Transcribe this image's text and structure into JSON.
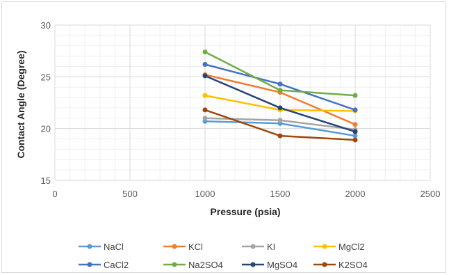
{
  "chart_data": {
    "type": "line",
    "xlabel": "Pressure (psia)",
    "ylabel": "Contact Angle (Degree)",
    "xlim": [
      0,
      2500
    ],
    "ylim": [
      15,
      30
    ],
    "x_ticks": [
      0,
      500,
      1000,
      1500,
      2000,
      2500
    ],
    "y_ticks": [
      15,
      20,
      25,
      30
    ],
    "x": [
      1000,
      1500,
      2000
    ],
    "grid": true,
    "legend_position": "bottom",
    "series": [
      {
        "name": "NaCl",
        "color": "#5b9bd5",
        "values": [
          20.7,
          20.5,
          19.3
        ]
      },
      {
        "name": "KCl",
        "color": "#ed7d31",
        "values": [
          25.2,
          23.5,
          20.4
        ]
      },
      {
        "name": "KI",
        "color": "#a5a5a5",
        "values": [
          21.0,
          20.8,
          19.9
        ]
      },
      {
        "name": "MgCl2",
        "color": "#ffc000",
        "values": [
          23.2,
          21.8,
          21.7
        ]
      },
      {
        "name": "CaCl2",
        "color": "#4472c4",
        "values": [
          26.2,
          24.3,
          21.8
        ]
      },
      {
        "name": "Na2SO4",
        "color": "#70ad47",
        "values": [
          27.4,
          23.7,
          23.2
        ]
      },
      {
        "name": "MgSO4",
        "color": "#264478",
        "values": [
          25.1,
          22.0,
          19.7
        ]
      },
      {
        "name": "K2SO4",
        "color": "#9e480e",
        "values": [
          21.8,
          19.3,
          18.9
        ]
      }
    ]
  }
}
